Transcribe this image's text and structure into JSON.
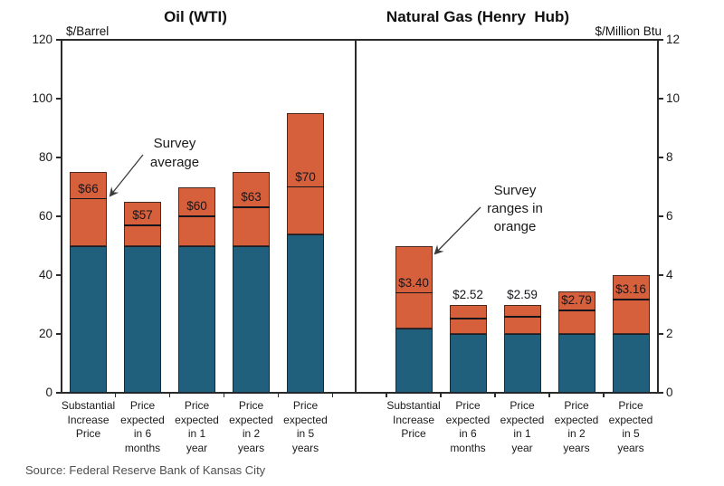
{
  "source": "Source: Federal Reserve Bank of Kansas City",
  "colors": {
    "range_orange": "#d6603b",
    "base_blue": "#20607d",
    "average_line": "#14141c",
    "axis": "#2b2b2b",
    "source_text": "#4f4f4f"
  },
  "chart_data": [
    {
      "type": "bar",
      "panel": "oil",
      "title": "Oil (WTI)",
      "unit_label": "$/Barrel",
      "ylim": [
        0,
        120
      ],
      "ytick_step": 20,
      "axis_side": "left",
      "grid": false,
      "categories": [
        [
          "Substantial",
          "Increase",
          "Price"
        ],
        [
          "Price",
          "expected",
          "in 6",
          "months"
        ],
        [
          "Price",
          "expected",
          "in 1",
          "year"
        ],
        [
          "Price",
          "expected",
          "in 2",
          "years"
        ],
        [
          "Price",
          "expected",
          "in 5",
          "years"
        ]
      ],
      "bars": [
        {
          "range_low": 50,
          "range_high": 75,
          "average": 66,
          "label": "$66",
          "label_position": "inside"
        },
        {
          "range_low": 50,
          "range_high": 65,
          "average": 57,
          "label": "$57",
          "label_position": "inside"
        },
        {
          "range_low": 50,
          "range_high": 70,
          "average": 60,
          "label": "$60",
          "label_position": "inside"
        },
        {
          "range_low": 50,
          "range_high": 75,
          "average": 63,
          "label": "$63",
          "label_position": "inside"
        },
        {
          "range_low": 54,
          "range_high": 95,
          "average": 70,
          "label": "$70",
          "label_position": "inside"
        }
      ],
      "annotation": {
        "lines": [
          "Survey",
          "average"
        ]
      }
    },
    {
      "type": "bar",
      "panel": "natural-gas",
      "title": "Natural Gas (Henry  Hub)",
      "unit_label": "$/Million Btu",
      "ylim": [
        0,
        12
      ],
      "ytick_step": 2,
      "axis_side": "right",
      "grid": false,
      "categories": [
        [
          "Substantial",
          "Increase",
          "Price"
        ],
        [
          "Price",
          "expected",
          "in 6",
          "months"
        ],
        [
          "Price",
          "expected",
          "in 1",
          "year"
        ],
        [
          "Price",
          "expected",
          "in 2",
          "years"
        ],
        [
          "Price",
          "expected",
          "in 5",
          "years"
        ]
      ],
      "bars": [
        {
          "range_low": 2.2,
          "range_high": 5.0,
          "average": 3.4,
          "label": "$3.40",
          "label_position": "inside"
        },
        {
          "range_low": 2.0,
          "range_high": 3.0,
          "average": 2.52,
          "label": "$2.52",
          "label_position": "above"
        },
        {
          "range_low": 2.0,
          "range_high": 3.0,
          "average": 2.59,
          "label": "$2.59",
          "label_position": "above"
        },
        {
          "range_low": 2.0,
          "range_high": 3.45,
          "average": 2.79,
          "label": "$2.79",
          "label_position": "inside"
        },
        {
          "range_low": 2.0,
          "range_high": 4.0,
          "average": 3.16,
          "label": "$3.16",
          "label_position": "inside"
        }
      ],
      "annotation": {
        "lines": [
          "Survey",
          "ranges in",
          "orange"
        ]
      }
    }
  ]
}
